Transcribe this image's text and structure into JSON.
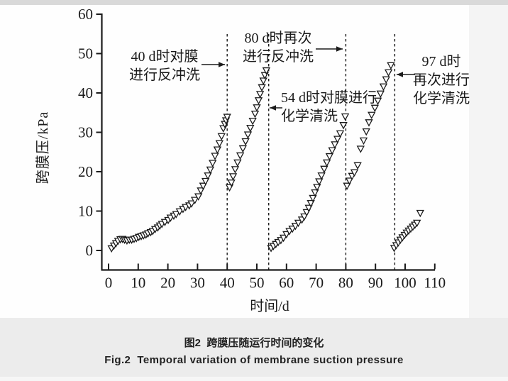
{
  "figure": {
    "caption_zh": "图2  跨膜压随运行时间的变化",
    "caption_en": "Fig.2  Temporal variation of membrane suction pressure"
  },
  "chart_data": {
    "type": "scatter",
    "title": "",
    "xlabel": "时间/d",
    "ylabel": "跨膜压/kPa",
    "xlim": [
      0,
      110
    ],
    "ylim": [
      0,
      60
    ],
    "xticks": [
      0,
      10,
      20,
      30,
      40,
      50,
      60,
      70,
      80,
      90,
      100,
      110
    ],
    "yticks": [
      0,
      10,
      20,
      30,
      40,
      50,
      60
    ],
    "grid": false,
    "legend": null,
    "marker": "open-down-triangle",
    "marker_color": "#1b1b1b",
    "series": [
      {
        "name": "run-1-before-backwash-40d",
        "points": [
          [
            1,
            0.5
          ],
          [
            1.8,
            1.2
          ],
          [
            2.5,
            1.8
          ],
          [
            3.2,
            2.4
          ],
          [
            4,
            2.8
          ],
          [
            4.7,
            2.9
          ],
          [
            5.4,
            2.7
          ],
          [
            6.2,
            2.5
          ],
          [
            7,
            2.7
          ],
          [
            7.8,
            2.7
          ],
          [
            8.6,
            2.9
          ],
          [
            9.4,
            3.1
          ],
          [
            10.2,
            3.4
          ],
          [
            11,
            3.6
          ],
          [
            11.8,
            3.8
          ],
          [
            12.6,
            4.0
          ],
          [
            13.3,
            4.3
          ],
          [
            14.2,
            4.6
          ],
          [
            14.9,
            4.9
          ],
          [
            15.7,
            5.4
          ],
          [
            16.6,
            5.8
          ],
          [
            17.3,
            6.3
          ],
          [
            18,
            6.7
          ],
          [
            19,
            7.2
          ],
          [
            20.1,
            7.7
          ],
          [
            20.9,
            8.3
          ],
          [
            22,
            8.8
          ],
          [
            22.8,
            9.2
          ],
          [
            24,
            9.9
          ],
          [
            25.1,
            10.5
          ],
          [
            26,
            11
          ],
          [
            27.2,
            11.4
          ],
          [
            28,
            11.9
          ],
          [
            29.1,
            12.8
          ],
          [
            30.3,
            13.7
          ],
          [
            31.1,
            15.2
          ],
          [
            31.9,
            16.4
          ],
          [
            32.7,
            17.6
          ],
          [
            33.5,
            19
          ],
          [
            34.3,
            20.5
          ],
          [
            35.1,
            22.2
          ],
          [
            35.9,
            24
          ],
          [
            36.7,
            25.6
          ],
          [
            37.4,
            27.2
          ],
          [
            38.1,
            29
          ],
          [
            38.7,
            31
          ],
          [
            39.2,
            32.1
          ],
          [
            39.6,
            33
          ],
          [
            40,
            33.9
          ]
        ]
      },
      {
        "name": "run-2-before-chemical-clean-54d",
        "points": [
          [
            40.8,
            16
          ],
          [
            41.4,
            17.2
          ],
          [
            42,
            18.8
          ],
          [
            42.7,
            20.6
          ],
          [
            43.5,
            22.3
          ],
          [
            44.4,
            24.1
          ],
          [
            45.3,
            25.9
          ],
          [
            46.2,
            27.7
          ],
          [
            47,
            29.4
          ],
          [
            47.8,
            31.1
          ],
          [
            48.6,
            32.9
          ],
          [
            49.4,
            34.7
          ],
          [
            50,
            36.3
          ],
          [
            50.6,
            38.1
          ],
          [
            51.1,
            39.7
          ],
          [
            51.7,
            41.4
          ],
          [
            52.2,
            43.1
          ],
          [
            52.7,
            44.5
          ],
          [
            53.2,
            45.7
          ]
        ]
      },
      {
        "name": "run-3-before-backwash-80d",
        "points": [
          [
            54.8,
            0.6
          ],
          [
            55.6,
            1.1
          ],
          [
            56.4,
            1.6
          ],
          [
            57.2,
            2.1
          ],
          [
            58.1,
            2.6
          ],
          [
            59,
            3.2
          ],
          [
            60,
            4.1
          ],
          [
            61,
            4.9
          ],
          [
            62,
            5.5
          ],
          [
            63,
            6.2
          ],
          [
            64,
            7
          ],
          [
            65.2,
            7.8
          ],
          [
            66,
            8.6
          ],
          [
            66.8,
            9.7
          ],
          [
            67.5,
            10.8
          ],
          [
            68.2,
            12
          ],
          [
            68.9,
            13.3
          ],
          [
            69.6,
            14.7
          ],
          [
            70.3,
            16.1
          ],
          [
            71,
            17.5
          ],
          [
            71.8,
            19
          ],
          [
            72.7,
            20.7
          ],
          [
            73.6,
            22.3
          ],
          [
            74.5,
            23.9
          ],
          [
            75.4,
            25.4
          ],
          [
            76.3,
            26.9
          ],
          [
            77.2,
            28.3
          ],
          [
            78.1,
            29.7
          ],
          [
            79.2,
            31.8
          ],
          [
            79.8,
            34
          ]
        ]
      },
      {
        "name": "run-4-before-chemical-clean-97d",
        "points": [
          [
            80.4,
            16.4
          ],
          [
            81.2,
            17.7
          ],
          [
            82.1,
            18.9
          ],
          [
            82.9,
            19.8
          ],
          [
            84,
            21.6
          ],
          [
            85,
            25.8
          ],
          [
            86,
            27.9
          ],
          [
            86.9,
            30.2
          ],
          [
            87.8,
            32.5
          ],
          [
            88.7,
            34.4
          ],
          [
            89.8,
            36.2
          ],
          [
            90.8,
            38
          ],
          [
            91.7,
            39.8
          ],
          [
            92.7,
            41.6
          ],
          [
            93.6,
            43.4
          ],
          [
            94.4,
            45.2
          ],
          [
            95.2,
            47
          ]
        ]
      },
      {
        "name": "run-5-after-chemical-clean",
        "points": [
          [
            96.3,
            0.6
          ],
          [
            97,
            1.3
          ],
          [
            97.7,
            2
          ],
          [
            98.4,
            2.7
          ],
          [
            99.1,
            3.3
          ],
          [
            99.8,
            3.9
          ],
          [
            100.5,
            4.5
          ],
          [
            101.2,
            5
          ],
          [
            101.9,
            5.5
          ],
          [
            102.6,
            6
          ],
          [
            103.3,
            6.5
          ],
          [
            104,
            7
          ],
          [
            105.1,
            9.5
          ]
        ]
      }
    ],
    "event_lines": [
      {
        "day": 40,
        "style": "dashed"
      },
      {
        "day": 54,
        "style": "dashed"
      },
      {
        "day": 80,
        "style": "dashed"
      },
      {
        "day": 96.5,
        "style": "dashed"
      }
    ],
    "annotations": [
      {
        "id": "ann-40",
        "lines": [
          "40 d时对膜",
          "进行反冲洗"
        ],
        "arrow": "right",
        "target_day": 40
      },
      {
        "id": "ann-80",
        "lines": [
          "80 d时再次",
          "进行反冲洗"
        ],
        "arrow": "right",
        "target_day": 80
      },
      {
        "id": "ann-54",
        "lines": [
          "54 d时对膜进行",
          "化学清洗"
        ],
        "arrow": "left",
        "target_day": 54
      },
      {
        "id": "ann-97",
        "lines": [
          "97 d时",
          "再次进行",
          "化学清洗"
        ],
        "arrow": "left",
        "target_day": 97
      }
    ]
  }
}
